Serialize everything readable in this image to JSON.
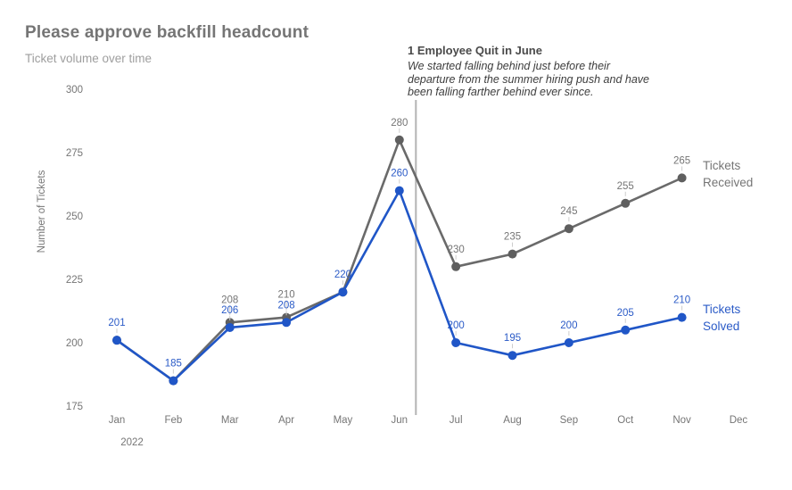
{
  "header": {
    "title": "Please approve backfill headcount",
    "subtitle": "Ticket volume over time"
  },
  "annotation": {
    "heading": "1 Employee Quit in June",
    "body_lines": [
      "We started falling behind just before their",
      "departure from the summer hiring push and have",
      "been falling farther behind ever since."
    ],
    "attached_month": "Jun"
  },
  "chart_data": {
    "type": "line",
    "title": "Please approve backfill headcount",
    "subtitle": "Ticket volume over time",
    "x": [
      "Jan",
      "Feb",
      "Mar",
      "Apr",
      "May",
      "Jun",
      "Jul",
      "Aug",
      "Sep",
      "Oct",
      "Nov",
      "Dec"
    ],
    "year_label": "2022",
    "ylabel": "Number of Tickets",
    "ylim": [
      175,
      300
    ],
    "yticks": [
      175,
      200,
      225,
      250,
      275,
      300
    ],
    "grid": false,
    "legend_position": "end-of-line",
    "annotation_line_month": "Jun",
    "series": [
      {
        "name": "Tickets Received",
        "name_lines": [
          "Tickets",
          "Received"
        ],
        "color": "#6a6a6a",
        "point_color": "#5f5f5f",
        "label_color": "#757575",
        "values": [
          201,
          185,
          208,
          210,
          220,
          280,
          230,
          235,
          245,
          255,
          265,
          null
        ]
      },
      {
        "name": "Tickets Solved",
        "name_lines": [
          "Tickets",
          "Solved"
        ],
        "color": "#2056c7",
        "point_color": "#2056c7",
        "label_color": "#2b5bc7",
        "values": [
          201,
          185,
          206,
          208,
          220,
          260,
          200,
          195,
          200,
          205,
          210,
          null
        ]
      }
    ]
  },
  "colors": {
    "background": "#ffffff",
    "annotation_line": "#b4b4b4",
    "label_stem": "#cccccc",
    "axis_text": "#757575"
  }
}
